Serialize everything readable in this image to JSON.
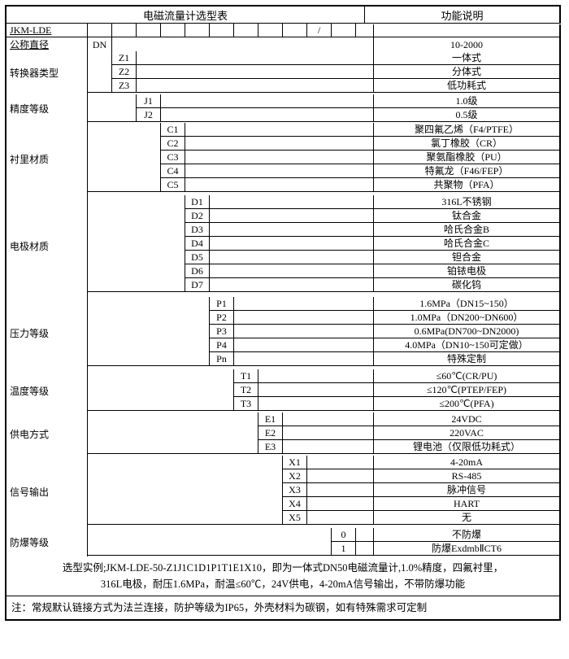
{
  "title_left": "电磁流量计选型表",
  "title_right": "功能说明",
  "header_code": "JKM-LDE",
  "header_sep": "/",
  "rows_flat": [
    {
      "label": "公称直径",
      "u": true,
      "codes": [
        "DN",
        "",
        "",
        "",
        "",
        "",
        "",
        "",
        "",
        "",
        "",
        ""
      ],
      "desc": "10-2000"
    }
  ],
  "groups": [
    {
      "label": "转换器类型",
      "items": [
        {
          "col": 1,
          "code": "Z1",
          "desc": "一体式"
        },
        {
          "col": 1,
          "code": "Z2",
          "desc": "分体式"
        },
        {
          "col": 1,
          "code": "Z3",
          "desc": "低功耗式"
        }
      ]
    },
    {
      "label": "精度等级",
      "items": [
        {
          "col": 2,
          "code": "J1",
          "desc": "1.0级"
        },
        {
          "col": 2,
          "code": "J2",
          "desc": "0.5级"
        }
      ]
    },
    {
      "label": "衬里材质",
      "items": [
        {
          "col": 3,
          "code": "C1",
          "desc": "聚四氟乙烯（F4/PTFE）"
        },
        {
          "col": 3,
          "code": "C2",
          "desc": "氯丁橡胶（CR）"
        },
        {
          "col": 3,
          "code": "C3",
          "desc": "聚氨酯橡胶（PU）"
        },
        {
          "col": 3,
          "code": "C4",
          "desc": "特氟龙（F46/FEP）"
        },
        {
          "col": 3,
          "code": "C5",
          "desc": "共聚物（PFA）"
        }
      ]
    },
    {
      "label": "电极材质",
      "items": [
        {
          "col": 4,
          "code": "D1",
          "desc": "316L不锈钢"
        },
        {
          "col": 4,
          "code": "D2",
          "desc": "钛合金"
        },
        {
          "col": 4,
          "code": "D3",
          "desc": "哈氏合金B"
        },
        {
          "col": 4,
          "code": "D4",
          "desc": "哈氏合金C"
        },
        {
          "col": 4,
          "code": "D5",
          "desc": "钽合金"
        },
        {
          "col": 4,
          "code": "D6",
          "desc": "铂铱电极"
        },
        {
          "col": 4,
          "code": "D7",
          "desc": "碳化钨"
        }
      ]
    },
    {
      "label": "压力等级",
      "items": [
        {
          "col": 5,
          "code": "P1",
          "desc": "1.6MPa（DN15~150）"
        },
        {
          "col": 5,
          "code": "P2",
          "desc": "1.0MPa（DN200~DN600）"
        },
        {
          "col": 5,
          "code": "P3",
          "desc": "0.6MPa(DN700~DN2000)"
        },
        {
          "col": 5,
          "code": "P4",
          "desc": "4.0MPa（DN10~150可定做）"
        },
        {
          "col": 5,
          "code": "Pn",
          "desc": "特殊定制"
        }
      ]
    },
    {
      "label": "温度等级",
      "items": [
        {
          "col": 6,
          "code": "T1",
          "desc": "≤60℃(CR/PU)"
        },
        {
          "col": 6,
          "code": "T2",
          "desc": "≤120℃(PTEP/FEP)"
        },
        {
          "col": 6,
          "code": "T3",
          "desc": "≤200℃(PFA)"
        }
      ]
    },
    {
      "label": "供电方式",
      "items": [
        {
          "col": 7,
          "code": "E1",
          "desc": "24VDC"
        },
        {
          "col": 7,
          "code": "E2",
          "desc": "220VAC"
        },
        {
          "col": 7,
          "code": "E3",
          "desc": "锂电池（仅限低功耗式）"
        }
      ]
    },
    {
      "label": "信号输出",
      "items": [
        {
          "col": 8,
          "code": "X1",
          "desc": "4-20mA"
        },
        {
          "col": 8,
          "code": "X2",
          "desc": "RS-485"
        },
        {
          "col": 8,
          "code": "X3",
          "desc": "脉冲信号"
        },
        {
          "col": 8,
          "code": "X4",
          "desc": "HART"
        },
        {
          "col": 8,
          "code": "X5",
          "desc": "无"
        }
      ]
    },
    {
      "label": "防爆等级",
      "items": [
        {
          "col": 10,
          "code": "0",
          "desc": "不防爆"
        },
        {
          "col": 10,
          "code": "1",
          "desc": "防爆ExdmbⅡCT6"
        }
      ]
    }
  ],
  "note1_a": "选型实例;JKM-LDE-50-Z1J1C1D1P1T1E1X10，即为一体式DN50电磁流量计,1.0%精度，四氟衬里，",
  "note1_b": "316L电极，耐压1.6MPa，耐温≤60℃，24V供电，4-20mA信号输出，不带防爆功能",
  "note2": "注：常规默认链接方式为法兰连接，防护等级为IP65，外壳材料为碳钢，如有特殊需求可定制"
}
